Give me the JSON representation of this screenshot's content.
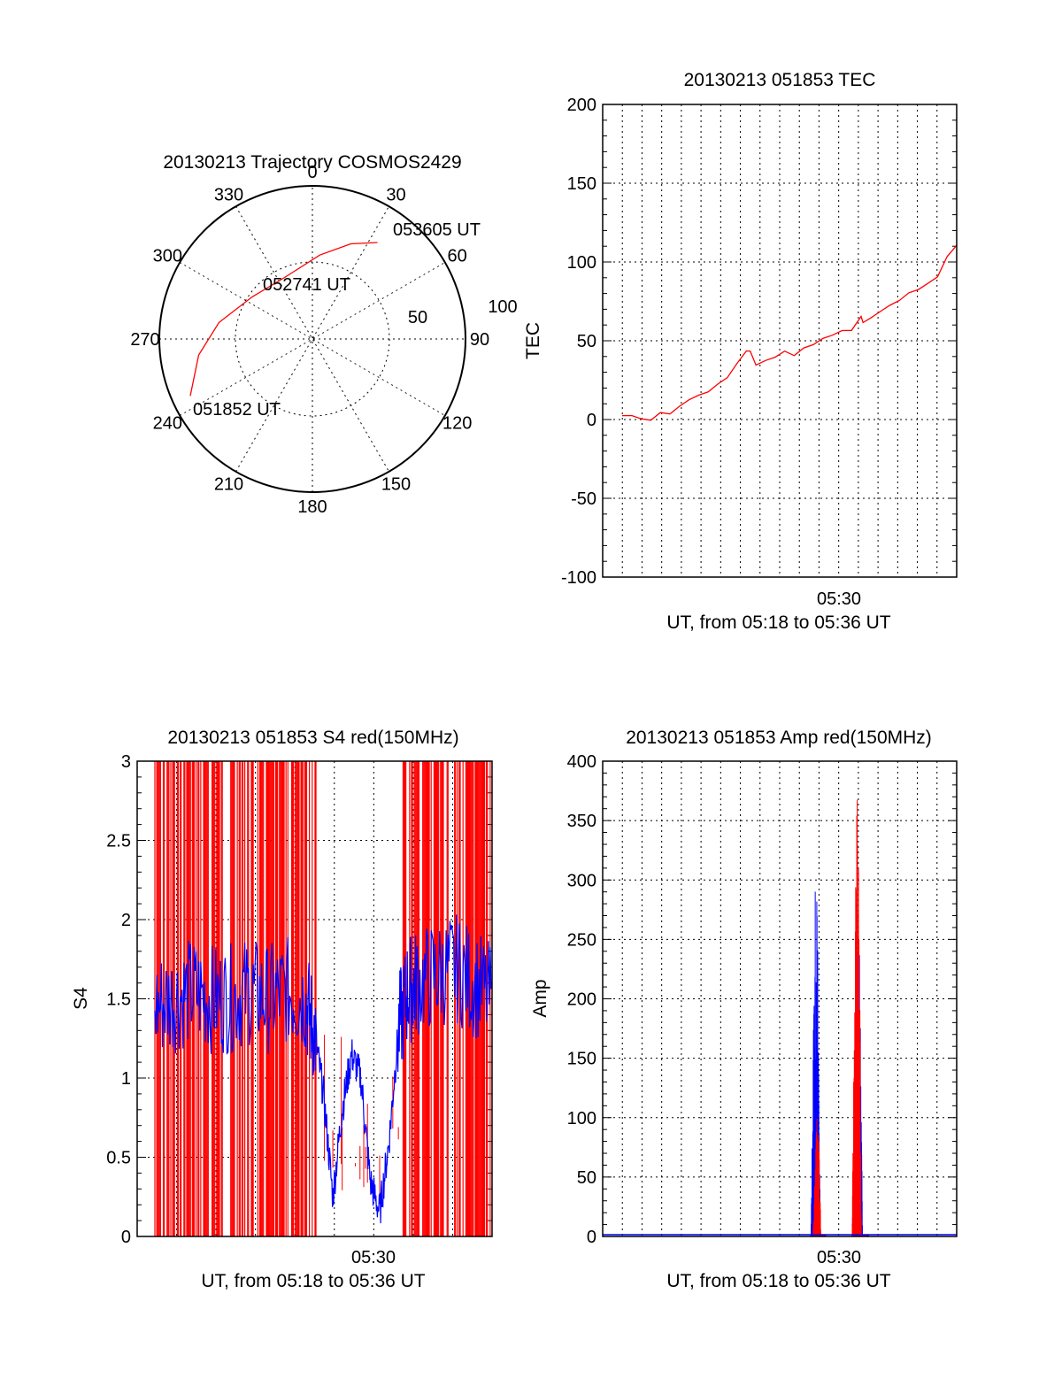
{
  "chart_data": [
    {
      "type": "polar",
      "title": "20130213 Trajectory COSMOS2429",
      "azimuth_labels": [
        "0",
        "30",
        "60",
        "90",
        "120",
        "150",
        "180",
        "210",
        "240",
        "270",
        "300",
        "330"
      ],
      "ring_labels": [
        "50",
        "100"
      ],
      "zenith_max": 100,
      "trajectory": {
        "color": "#ff0000",
        "points": [
          {
            "az": 245,
            "zen": 88
          },
          {
            "az": 262,
            "zen": 75
          },
          {
            "az": 280,
            "zen": 62
          },
          {
            "az": 305,
            "zen": 48
          },
          {
            "az": 335,
            "zen": 44
          },
          {
            "az": 5,
            "zen": 55
          },
          {
            "az": 22,
            "zen": 67
          },
          {
            "az": 34,
            "zen": 76
          }
        ]
      },
      "annotations": [
        "053605 UT",
        "052741 UT",
        "051852 UT"
      ]
    },
    {
      "type": "line",
      "title": "20130213 051853 TEC",
      "ylabel": "TEC",
      "xlabel": "UT, from 05:18 to 05:36 UT",
      "xtick": "05:30",
      "x_range": [
        "05:18",
        "05:36"
      ],
      "ylim": [
        -100,
        200
      ],
      "yticks": [
        "200",
        "150",
        "100",
        "50",
        "0",
        "-50",
        "-100"
      ],
      "series": [
        {
          "color": "#ff0000",
          "x_min": [
            0.5,
            1.0,
            1.5,
            2.0,
            2.5,
            3.0,
            3.5,
            4.0,
            4.5,
            5.0,
            5.5,
            6.0,
            6.5,
            7.0,
            7.2,
            7.5,
            8.0,
            8.5,
            9.0,
            9.5,
            10.0,
            10.5,
            11.0,
            11.5,
            12.0,
            12.5,
            13.0,
            13.1,
            13.5,
            14.0,
            14.5,
            15.0,
            15.5,
            16.0,
            16.5,
            17.0,
            17.5,
            18.0
          ],
          "values": [
            2,
            3,
            0,
            0,
            4,
            4,
            8,
            13,
            15,
            18,
            22,
            27,
            35,
            44,
            43,
            35,
            37,
            40,
            43,
            41,
            45,
            48,
            51,
            54,
            56,
            57,
            65,
            62,
            64,
            69,
            72,
            76,
            80,
            83,
            86,
            91,
            103,
            111
          ]
        }
      ]
    },
    {
      "type": "line",
      "title": "20130213 051853 S4 red(150MHz)",
      "ylabel": "S4",
      "xlabel": "UT, from 05:18 to 05:36 UT",
      "xtick": "05:30",
      "x_range": [
        "05:18",
        "05:36"
      ],
      "ylim": [
        0,
        3
      ],
      "yticks": [
        "3",
        "2.5",
        "2",
        "1.5",
        "1",
        "0.5",
        "0"
      ],
      "series": [
        {
          "color": "#0000ff",
          "x_min": [
            0.0,
            1.0,
            2.0,
            3.0,
            4.0,
            5.0,
            6.0,
            7.0,
            8.0,
            8.5,
            9.0,
            9.5,
            10.0,
            10.5,
            11.0,
            11.5,
            12.0,
            12.5,
            13.0,
            13.5,
            14.0,
            15.0,
            16.0,
            17.0,
            18.0
          ],
          "values": [
            1.45,
            1.5,
            1.55,
            1.5,
            1.5,
            1.55,
            1.5,
            1.55,
            1.5,
            1.3,
            0.9,
            0.25,
            0.8,
            1.15,
            1.0,
            0.35,
            0.15,
            0.6,
            1.3,
            1.55,
            1.6,
            1.65,
            1.7,
            1.6,
            1.5
          ]
        }
      ],
      "red_spikes": "dense vertical red lines from 0 to 3 across 05:18-05:27 and 05:33-05:36"
    },
    {
      "type": "line",
      "title": "20130213 051853 Amp red(150MHz)",
      "ylabel": "Amp",
      "xlabel": "UT, from 05:18 to 05:36 UT",
      "xtick": "05:30",
      "x_range": [
        "05:18",
        "05:36"
      ],
      "ylim": [
        0,
        400
      ],
      "yticks": [
        "400",
        "350",
        "300",
        "250",
        "200",
        "150",
        "100",
        "50",
        "0"
      ],
      "series": [
        {
          "color": "#0000ff",
          "bursts": [
            {
              "x_start_min": 10.2,
              "x_end_min": 11.0,
              "peak": 330
            },
            {
              "x_start_min": 12.4,
              "x_end_min": 13.3,
              "peak": 300
            }
          ],
          "baseline": 1
        },
        {
          "color": "#ff0000",
          "bursts": [
            {
              "x_start_min": 10.3,
              "x_end_min": 11.0,
              "peak": 110
            },
            {
              "x_start_min": 12.4,
              "x_end_min": 13.2,
              "peak": 400
            }
          ],
          "baseline": 1
        }
      ]
    }
  ]
}
